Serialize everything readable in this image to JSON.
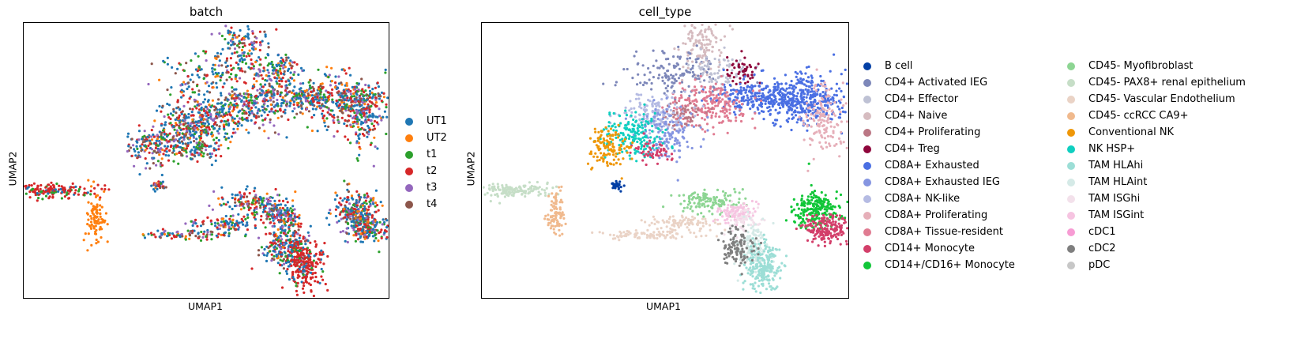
{
  "chart_data": [
    {
      "type": "scatter",
      "title": "batch",
      "xlabel": "UMAP1",
      "ylabel": "UMAP2",
      "grid": false,
      "legend_position": "right",
      "categories": [
        {
          "name": "UT1",
          "color": "#1f77b4"
        },
        {
          "name": "UT2",
          "color": "#ff7f0e"
        },
        {
          "name": "t1",
          "color": "#2ca02c"
        },
        {
          "name": "t2",
          "color": "#d62728"
        },
        {
          "name": "t3",
          "color": "#9467bd"
        },
        {
          "name": "t4",
          "color": "#8c564b"
        }
      ]
    },
    {
      "type": "scatter",
      "title": "cell_type",
      "xlabel": "UMAP1",
      "ylabel": "UMAP2",
      "grid": false,
      "legend_position": "right",
      "categories": [
        {
          "name": "B cell",
          "color": "#023fa5"
        },
        {
          "name": "CD4+ Activated IEG",
          "color": "#7d87b9"
        },
        {
          "name": "CD4+ Effector",
          "color": "#bec1d4"
        },
        {
          "name": "CD4+ Naive",
          "color": "#d6bcc0"
        },
        {
          "name": "CD4+ Proliferating",
          "color": "#bb7784"
        },
        {
          "name": "CD4+ Treg",
          "color": "#8e063b"
        },
        {
          "name": "CD8A+ Exhausted",
          "color": "#4a6fe3"
        },
        {
          "name": "CD8A+ Exhausted IEG",
          "color": "#8595e1"
        },
        {
          "name": "CD8A+ NK-like",
          "color": "#b5bbe3"
        },
        {
          "name": "CD8A+ Proliferating",
          "color": "#e6afb9"
        },
        {
          "name": "CD8A+ Tissue-resident",
          "color": "#e07b91"
        },
        {
          "name": "CD14+ Monocyte",
          "color": "#d33f6a"
        },
        {
          "name": "CD14+/CD16+ Monocyte",
          "color": "#11c638"
        },
        {
          "name": "CD45- Myofibroblast",
          "color": "#8dd593"
        },
        {
          "name": "CD45- PAX8+ renal epithelium",
          "color": "#c6dec7"
        },
        {
          "name": "CD45- Vascular Endothelium",
          "color": "#ead3c6"
        },
        {
          "name": "CD45- ccRCC CA9+",
          "color": "#f0b98d"
        },
        {
          "name": "Conventional NK",
          "color": "#ef9708"
        },
        {
          "name": "NK HSP+",
          "color": "#0fcfc0"
        },
        {
          "name": "TAM HLAhi",
          "color": "#9cded6"
        },
        {
          "name": "TAM HLAint",
          "color": "#d5eae7"
        },
        {
          "name": "TAM ISGhi",
          "color": "#f3e1eb"
        },
        {
          "name": "TAM ISGint",
          "color": "#f6c4e1"
        },
        {
          "name": "cDC1",
          "color": "#f79cd4"
        },
        {
          "name": "cDC2",
          "color": "#7f7f7f"
        },
        {
          "name": "pDC",
          "color": "#c7c7c7"
        }
      ]
    }
  ]
}
